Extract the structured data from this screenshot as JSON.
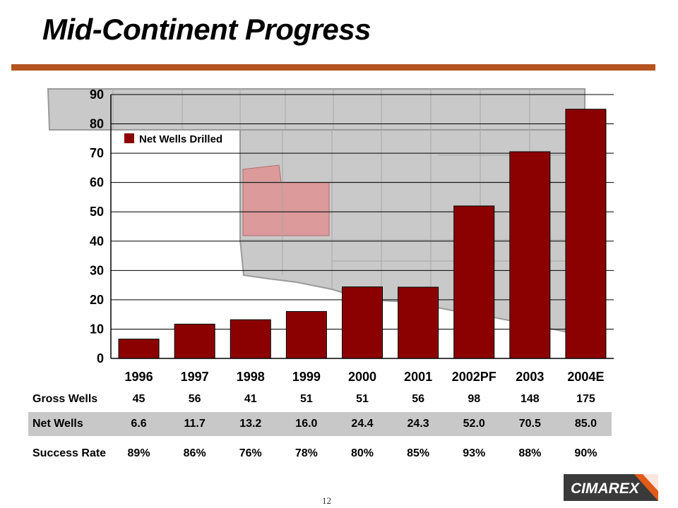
{
  "header": {
    "title": "Mid-Continent Progress"
  },
  "colors": {
    "bar": "#8b0000",
    "accent_rule": "#b5541f",
    "map_base": "#c9c9c9",
    "map_highlight": "#dc9a9a"
  },
  "chart_data": {
    "type": "bar",
    "categories": [
      "1996",
      "1997",
      "1998",
      "1999",
      "2000",
      "2001",
      "2002PF",
      "2003",
      "2004E"
    ],
    "series": [
      {
        "name": "Net Wells Drilled",
        "values": [
          6.6,
          11.7,
          13.2,
          16.0,
          24.4,
          24.3,
          52.0,
          70.5,
          85.0
        ]
      }
    ],
    "ylim": [
      0,
      90
    ],
    "yticks": [
      0,
      10,
      20,
      30,
      40,
      50,
      60,
      70,
      80,
      90
    ],
    "grid": true,
    "legend": "top-left",
    "background_image": "oklahoma-county-map"
  },
  "table": {
    "rows": [
      {
        "label": "Gross Wells",
        "values": [
          "45",
          "56",
          "41",
          "51",
          "51",
          "56",
          "98",
          "148",
          "175"
        ]
      },
      {
        "label": "Net Wells",
        "values": [
          "6.6",
          "11.7",
          "13.2",
          "16.0",
          "24.4",
          "24.3",
          "52.0",
          "70.5",
          "85.0"
        ]
      },
      {
        "label": "Success Rate",
        "values": [
          "89%",
          "86%",
          "76%",
          "78%",
          "80%",
          "85%",
          "93%",
          "88%",
          "90%"
        ]
      }
    ]
  },
  "footer": {
    "page_number": "12",
    "logo_text": "CIMAREX"
  }
}
